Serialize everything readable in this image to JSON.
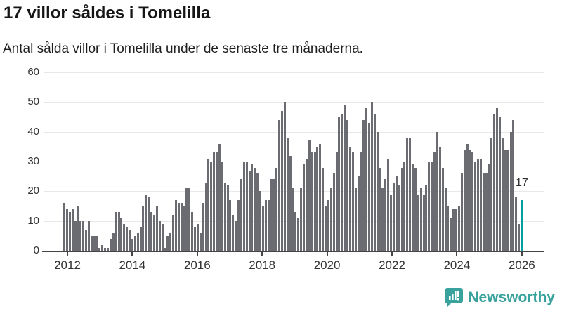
{
  "header": {
    "title": "17 villor såldes i Tomelilla",
    "subtitle": "Antal sålda villor i Tomelilla under de senaste tre månaderna."
  },
  "chart_data": {
    "type": "bar",
    "title": "17 villor såldes i Tomelilla",
    "subtitle": "Antal sålda villor i Tomelilla under de senaste tre månaderna.",
    "xlabel": "",
    "ylabel": "",
    "ylim": [
      0,
      60
    ],
    "y_ticks": [
      0,
      10,
      20,
      30,
      40,
      50,
      60
    ],
    "x_tick_labels": [
      "2012",
      "2014",
      "2016",
      "2018",
      "2020",
      "2022",
      "2024",
      "2026"
    ],
    "grid": true,
    "legend": false,
    "frequency": "monthly",
    "start": "2011-12",
    "values": [
      16,
      14,
      13,
      14,
      10,
      15,
      10,
      10,
      7,
      10,
      5,
      5,
      5,
      1,
      2,
      1,
      1,
      4,
      6,
      13,
      13,
      11,
      9,
      8,
      7,
      4,
      5,
      6,
      8,
      15,
      19,
      18,
      13,
      12,
      15,
      10,
      9,
      1,
      5,
      6,
      12,
      17,
      16,
      16,
      15,
      21,
      21,
      13,
      8,
      9,
      6,
      16,
      23,
      31,
      30,
      33,
      33,
      36,
      30,
      23,
      22,
      17,
      12,
      10,
      17,
      24,
      30,
      30,
      27,
      29,
      28,
      26,
      20,
      15,
      17,
      17,
      24,
      24,
      28,
      44,
      47,
      50,
      38,
      32,
      21,
      13,
      11,
      21,
      29,
      31,
      37,
      33,
      33,
      35,
      36,
      28,
      15,
      17,
      21,
      26,
      33,
      45,
      46,
      49,
      44,
      35,
      33,
      21,
      25,
      33,
      44,
      48,
      43,
      50,
      46,
      40,
      28,
      21,
      24,
      31,
      19,
      23,
      25,
      22,
      28,
      30,
      38,
      38,
      29,
      28,
      19,
      21,
      19,
      22,
      30,
      30,
      33,
      40,
      35,
      28,
      21,
      15,
      11,
      14,
      14,
      15,
      26,
      34,
      36,
      34,
      33,
      30,
      31,
      31,
      26,
      26,
      29,
      38,
      46,
      48,
      45,
      38,
      34,
      34,
      40,
      44,
      18,
      9,
      17
    ],
    "highlight_last": {
      "value": 17,
      "label": "17",
      "color": "#00a0a0"
    },
    "bar_color": "#6b6b72"
  },
  "annotation": {
    "label": "17"
  },
  "footer": {
    "brand": "Newsworthy"
  },
  "colors": {
    "accent_teal": "#00a0a0",
    "brand_teal": "#3aa29c",
    "bar_gray": "#6b6b72",
    "grid": "#e8e8e8",
    "axis": "#454545"
  }
}
